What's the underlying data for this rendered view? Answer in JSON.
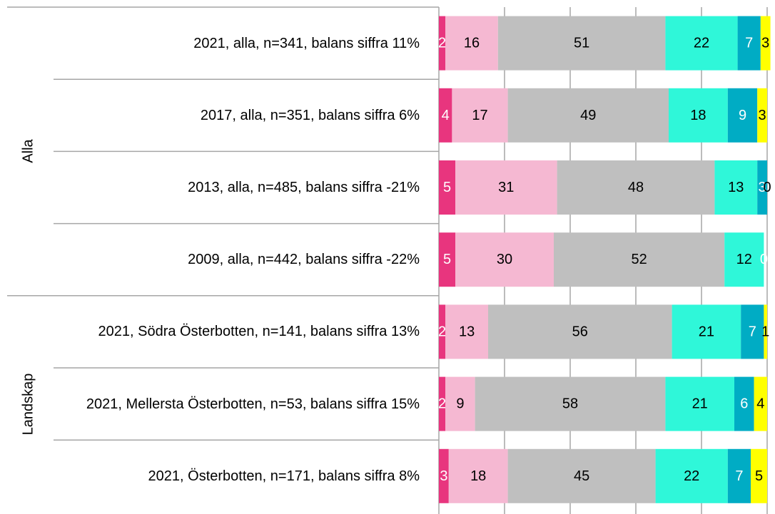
{
  "chart_data": {
    "type": "stacked-barh",
    "groups": [
      "Alla",
      "Landskap"
    ],
    "categories": [
      "2021, alla, n=341, balans siffra 11%",
      "2017, alla, n=351, balans siffra 6%",
      "2013, alla, n=485, balans siffra -21%",
      "2009, alla, n=442, balans siffra -22%",
      "2021, Södra Österbotten, n=141, balans siffra 13%",
      "2021, Mellersta Österbotten, n=53, balans siffra 15%",
      "2021, Österbotten, n=171, balans siffra 8%"
    ],
    "series": [
      {
        "color": "#e8357e",
        "values": [
          2,
          4,
          5,
          5,
          2,
          2,
          3
        ]
      },
      {
        "color": "#f5b8d2",
        "values": [
          16,
          17,
          31,
          30,
          13,
          9,
          18
        ]
      },
      {
        "color": "#bfbfbf",
        "values": [
          51,
          49,
          48,
          52,
          56,
          58,
          45
        ]
      },
      {
        "color": "#2ff7d9",
        "values": [
          22,
          18,
          13,
          12,
          21,
          21,
          22
        ]
      },
      {
        "color": "#00acc4",
        "values": [
          7,
          9,
          3,
          0,
          7,
          6,
          7
        ]
      },
      {
        "color": "#ffff00",
        "values": [
          3,
          3,
          0,
          null,
          1,
          4,
          5
        ]
      }
    ],
    "xlim": [
      0,
      100
    ],
    "xticks": [
      0,
      20,
      40,
      60,
      80,
      100
    ],
    "grid": true
  }
}
